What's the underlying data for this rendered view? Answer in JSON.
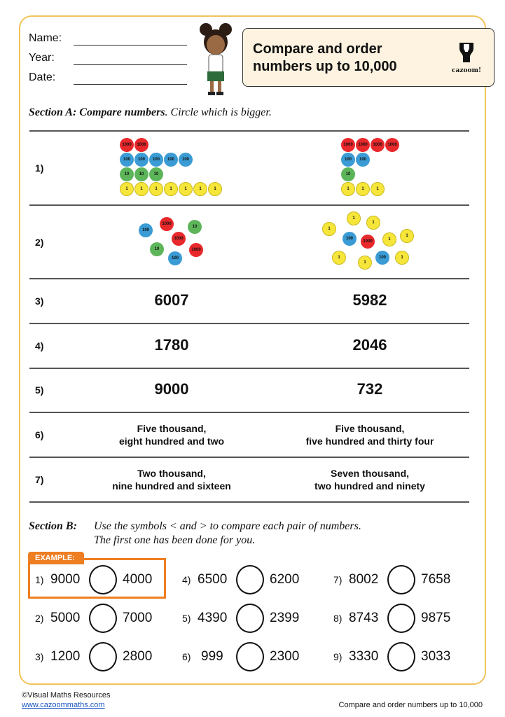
{
  "header": {
    "name_label": "Name:",
    "year_label": "Year:",
    "date_label": "Date:",
    "title": "Compare and order numbers up to 10,000",
    "logo_text": "cazoom!"
  },
  "sectionA": {
    "heading": "Section A: Compare numbers",
    "instruction": ". Circle which is bigger.",
    "rows": [
      {
        "num": "1)",
        "left_counters": {
          "1000": 2,
          "100": 5,
          "10": 3,
          "1": 7
        },
        "right_counters": {
          "1000": 4,
          "100": 2,
          "10": 1,
          "1": 3
        }
      },
      {
        "num": "2)",
        "left_counters": [
          "100",
          "1000",
          "10",
          "1000",
          "10",
          "1000",
          "100"
        ],
        "right_counters": [
          "1",
          "1",
          "1",
          "100",
          "1000",
          "1",
          "1",
          "1",
          "1",
          "100",
          "1"
        ]
      },
      {
        "num": "3)",
        "left": "6007",
        "right": "5982"
      },
      {
        "num": "4)",
        "left": "1780",
        "right": "2046"
      },
      {
        "num": "5)",
        "left": "9000",
        "right": "732"
      },
      {
        "num": "6)",
        "left": [
          "Five thousand,",
          "eight hundred and two"
        ],
        "right": [
          "Five thousand,",
          "five hundred and thirty four"
        ]
      },
      {
        "num": "7)",
        "left": [
          "Two thousand,",
          "nine hundred and sixteen"
        ],
        "right": [
          "Seven thousand,",
          "two hundred and ninety"
        ]
      }
    ]
  },
  "sectionB": {
    "heading": "Section B:",
    "instruction_1": "Use the symbols < and > to compare each pair of numbers.",
    "instruction_2": "The first one has been done for you.",
    "example_label": "EXAMPLE:",
    "items": [
      {
        "num": "1)",
        "a": "9000",
        "b": "4000"
      },
      {
        "num": "2)",
        "a": "5000",
        "b": "7000"
      },
      {
        "num": "3)",
        "a": "1200",
        "b": "2800"
      },
      {
        "num": "4)",
        "a": "6500",
        "b": "6200"
      },
      {
        "num": "5)",
        "a": "4390",
        "b": "2399"
      },
      {
        "num": "6)",
        "a": "999",
        "b": "2300"
      },
      {
        "num": "7)",
        "a": "8002",
        "b": "7658"
      },
      {
        "num": "8)",
        "a": "8743",
        "b": "9875"
      },
      {
        "num": "9)",
        "a": "3330",
        "b": "3033"
      }
    ]
  },
  "footer": {
    "copyright": "©Visual Maths Resources",
    "link": "www.cazoommaths.com",
    "title": "Compare and order numbers up to 10,000"
  },
  "colors": {
    "frame": "#f2c35a",
    "accent": "#ee7e22",
    "counter_1": "#f7e63a",
    "counter_10": "#5db55a",
    "counter_100": "#3a9bd5",
    "counter_1000": "#e8282b"
  }
}
